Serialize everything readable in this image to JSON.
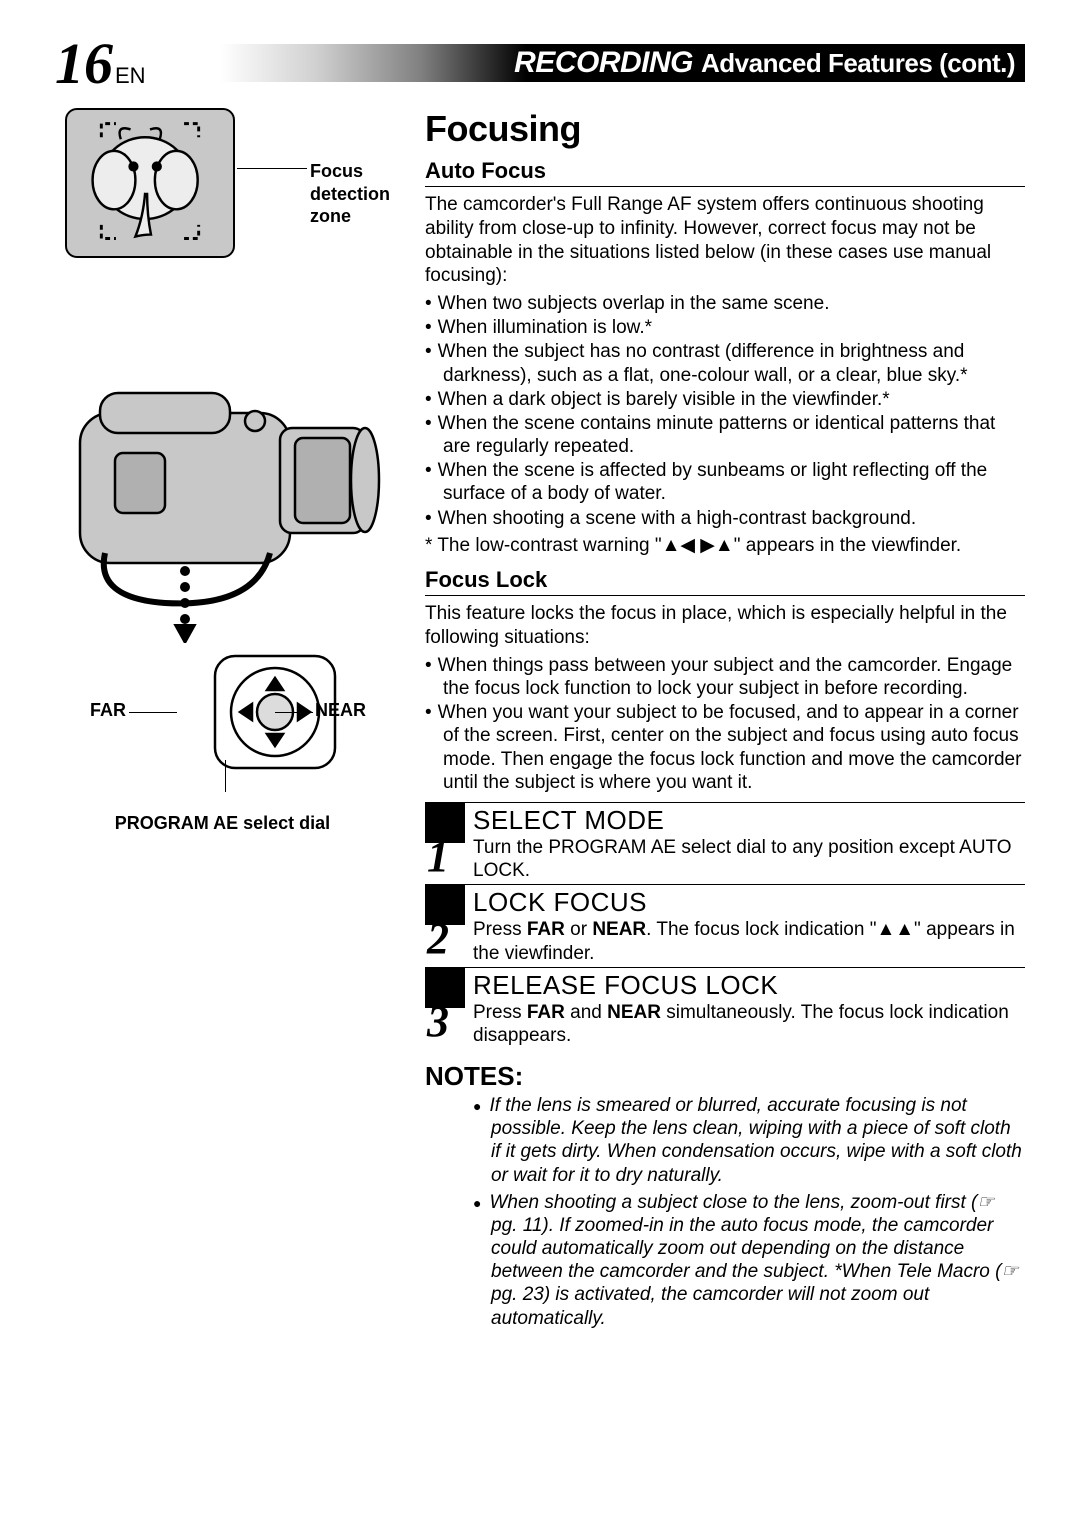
{
  "header": {
    "page_number": "16",
    "lang": "EN",
    "title_italic": "RECORDING",
    "title_rest": "Advanced Features (cont.)"
  },
  "left": {
    "focus_zone_label": "Focus\ndetection zone",
    "far_label": "FAR",
    "near_label": "NEAR",
    "dial_caption": "PROGRAM AE select dial"
  },
  "right": {
    "section_title": "Focusing",
    "auto_focus": {
      "heading": "Auto Focus",
      "intro": "The camcorder's Full Range AF system offers continuous shooting ability from close-up to infinity. However, correct focus may not be obtainable in the situations listed below (in these cases use manual focusing):",
      "bullets": [
        "When two subjects overlap in the same scene.",
        "When illumination is low.*",
        "When the subject has no contrast (difference in brightness and darkness), such as a flat, one-colour wall, or a clear, blue sky.*",
        "When a dark object is barely visible in the viewfinder.*",
        "When the scene contains minute patterns or identical patterns that are regularly repeated.",
        "When the scene is affected by sunbeams or light reflecting off the surface of a body of water.",
        "When shooting a scene with a high-contrast background."
      ],
      "asterisk": "* The low-contrast warning \"▲◀ ▶▲\" appears in the viewfinder."
    },
    "focus_lock": {
      "heading": "Focus Lock",
      "intro": "This feature locks the focus in place, which is especially helpful in the following situations:",
      "bullets": [
        "When things pass between your subject and the camcorder. Engage the focus lock function to lock your subject in before recording.",
        "When you want your subject to be focused, and to appear in a corner of the screen. First, center on the subject and focus using auto focus mode. Then engage the focus lock function and move the camcorder until the subject is where you want it."
      ]
    },
    "steps": [
      {
        "num": "1",
        "title": "SELECT MODE",
        "body_html": "Turn the PROGRAM AE select dial to any position except AUTO LOCK."
      },
      {
        "num": "2",
        "title": "LOCK FOCUS",
        "body_html": "Press <b>FAR</b> or <b>NEAR</b>. The focus lock indication \"▲▲\" appears in the viewfinder."
      },
      {
        "num": "3",
        "title": "RELEASE FOCUS LOCK",
        "body_html": "Press <b>FAR</b> and <b>NEAR</b> simultaneously. The focus lock indication disappears."
      }
    ],
    "notes": {
      "heading": "NOTES:",
      "items": [
        "If the lens is smeared or blurred, accurate focusing is not possible. Keep the lens clean, wiping with a piece of soft cloth if it gets dirty. When condensation occurs, wipe with a soft cloth or wait for it to dry naturally.",
        "When shooting a subject close to the lens, zoom-out first (☞ pg. 11). If zoomed-in in the auto focus mode, the camcorder could automatically zoom out depending on the distance between the camcorder and the subject. *When Tele Macro (☞ pg. 23) is activated, the camcorder will not zoom out automatically."
      ]
    }
  },
  "style": {
    "page_bg": "#ffffff",
    "text_color": "#000000",
    "illustration_bg": "#c8c8c8",
    "header_gradient_stops": [
      "#ffffff",
      "#d0d0d0",
      "#808080",
      "#000000"
    ]
  }
}
